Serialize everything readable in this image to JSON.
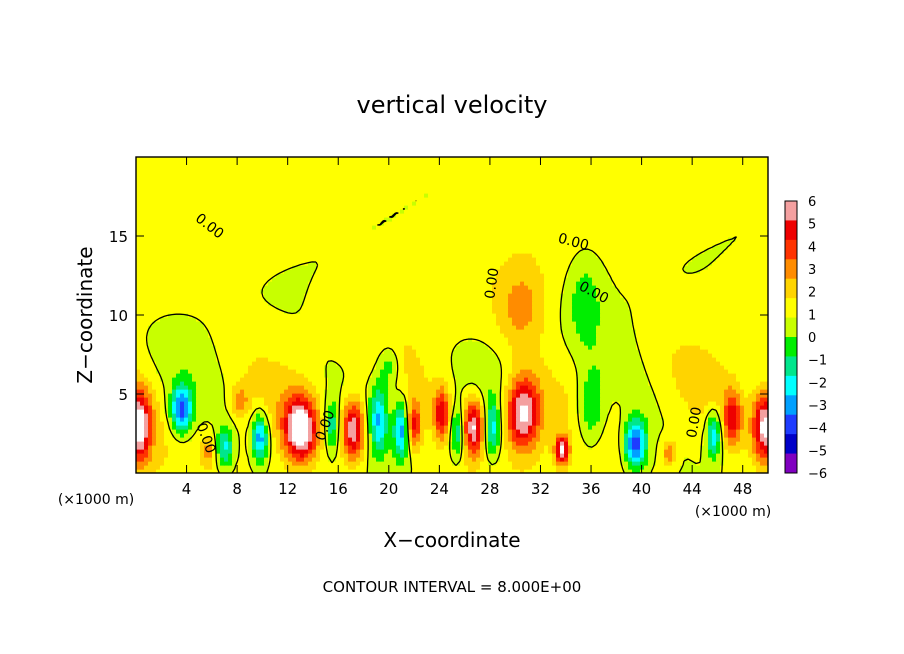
{
  "chart_data": {
    "type": "heatmap",
    "title": "vertical velocity",
    "xlabel": "X−coordinate",
    "ylabel": "Z−coordinate",
    "x_unit_left": "(×1000 m)",
    "x_unit_right": "(×1000 m)",
    "footer": "CONTOUR INTERVAL = 8.000E+00",
    "xlim": [
      0,
      50
    ],
    "ylim": [
      0,
      20
    ],
    "x_ticks": [
      4,
      8,
      12,
      16,
      20,
      24,
      28,
      32,
      36,
      40,
      44,
      48
    ],
    "x_tick_labels": [
      "4",
      "8",
      "12",
      "16",
      "20",
      "24",
      "28",
      "32",
      "36",
      "40",
      "44",
      "48"
    ],
    "y_ticks": [
      5,
      10,
      15
    ],
    "y_tick_labels": [
      "5",
      "10",
      "15"
    ],
    "colorbar": {
      "ticks": [
        6,
        5,
        4,
        3,
        2,
        1,
        0,
        -1,
        -2,
        -3,
        -4,
        -5,
        -6
      ],
      "tick_labels": [
        "6",
        "5",
        "4",
        "3",
        "2",
        "1",
        "0",
        "−1",
        "−2",
        "−3",
        "−4",
        "−5",
        "−6"
      ],
      "colors": [
        "#f4a0a0",
        "#ee0000",
        "#ff3300",
        "#ff8c00",
        "#ffd400",
        "#ffff00",
        "#c8ff00",
        "#00ee00",
        "#00e68c",
        "#00ffff",
        "#00a0ff",
        "#1e3cff",
        "#0000c8",
        "#8000c0"
      ]
    },
    "contour_labels": [
      {
        "text": "0.00",
        "x": 5.8,
        "y": 15.6,
        "rot": 38
      },
      {
        "text": "0.00",
        "x": 28.2,
        "y": 12.0,
        "rot": -82
      },
      {
        "text": "0.00",
        "x": 34.6,
        "y": 14.6,
        "rot": 15
      },
      {
        "text": "0.00",
        "x": 36.2,
        "y": 11.4,
        "rot": 28
      },
      {
        "text": "0.00",
        "x": 15.0,
        "y": 3.0,
        "rot": -70
      },
      {
        "text": "0.00",
        "x": 5.5,
        "y": 2.2,
        "rot": 70
      },
      {
        "text": "0.00",
        "x": 44.2,
        "y": 3.2,
        "rot": -80
      }
    ],
    "updrafts": [
      {
        "x": 0.2,
        "y": 3.0,
        "amp": 6.6,
        "sx": 1.0,
        "sy": 2.2
      },
      {
        "x": 13.0,
        "y": 2.8,
        "amp": 6.8,
        "sx": 1.25,
        "sy": 2.0
      },
      {
        "x": 17.2,
        "y": 2.8,
        "amp": 6.2,
        "sx": 0.9,
        "sy": 1.9
      },
      {
        "x": 22.0,
        "y": 3.0,
        "amp": 4.0,
        "sx": 0.6,
        "sy": 1.5
      },
      {
        "x": 24.2,
        "y": 3.8,
        "amp": 4.3,
        "sx": 0.65,
        "sy": 1.6
      },
      {
        "x": 26.7,
        "y": 3.0,
        "amp": 6.0,
        "sx": 0.8,
        "sy": 1.8
      },
      {
        "x": 30.6,
        "y": 3.8,
        "amp": 6.8,
        "sx": 1.4,
        "sy": 2.3
      },
      {
        "x": 33.7,
        "y": 1.5,
        "amp": 5.5,
        "sx": 0.55,
        "sy": 0.9
      },
      {
        "x": 42.2,
        "y": 1.3,
        "amp": 3.0,
        "sx": 0.55,
        "sy": 0.8
      },
      {
        "x": 47.2,
        "y": 3.5,
        "amp": 4.0,
        "sx": 0.7,
        "sy": 1.7
      },
      {
        "x": 49.8,
        "y": 3.0,
        "amp": 6.6,
        "sx": 1.0,
        "sy": 2.2
      },
      {
        "x": 8.2,
        "y": 4.6,
        "amp": 2.2,
        "sx": 0.7,
        "sy": 1.0
      },
      {
        "x": 30.5,
        "y": 10.5,
        "amp": 2.0,
        "sx": 1.8,
        "sy": 2.5
      },
      {
        "x": 5.8,
        "y": 1.5,
        "amp": 2.0,
        "sx": 0.6,
        "sy": 1.0
      }
    ],
    "downdrafts": [
      {
        "x": 3.6,
        "y": 4.0,
        "amp": 5.8,
        "sx": 0.85,
        "sy": 1.5
      },
      {
        "x": 7.0,
        "y": 1.6,
        "amp": 3.5,
        "sx": 0.7,
        "sy": 1.3
      },
      {
        "x": 9.8,
        "y": 2.3,
        "amp": 5.0,
        "sx": 0.65,
        "sy": 1.5
      },
      {
        "x": 15.5,
        "y": 3.0,
        "amp": 3.0,
        "sx": 0.6,
        "sy": 1.6
      },
      {
        "x": 19.2,
        "y": 3.5,
        "amp": 3.8,
        "sx": 0.7,
        "sy": 2.2
      },
      {
        "x": 21.0,
        "y": 2.8,
        "amp": 4.5,
        "sx": 0.6,
        "sy": 1.8
      },
      {
        "x": 25.4,
        "y": 2.6,
        "amp": 3.5,
        "sx": 0.55,
        "sy": 1.6
      },
      {
        "x": 28.2,
        "y": 2.8,
        "amp": 3.5,
        "sx": 0.6,
        "sy": 1.7
      },
      {
        "x": 36.0,
        "y": 4.0,
        "amp": 2.8,
        "sx": 1.2,
        "sy": 2.5
      },
      {
        "x": 39.5,
        "y": 1.9,
        "amp": 6.0,
        "sx": 0.9,
        "sy": 1.6
      },
      {
        "x": 45.7,
        "y": 2.5,
        "amp": 4.2,
        "sx": 0.6,
        "sy": 1.5
      },
      {
        "x": 20.0,
        "y": 6.8,
        "amp": 2.2,
        "sx": 0.9,
        "sy": 1.4
      },
      {
        "x": 35.5,
        "y": 11.0,
        "amp": 1.7,
        "sx": 1.4,
        "sy": 3.0
      }
    ]
  }
}
